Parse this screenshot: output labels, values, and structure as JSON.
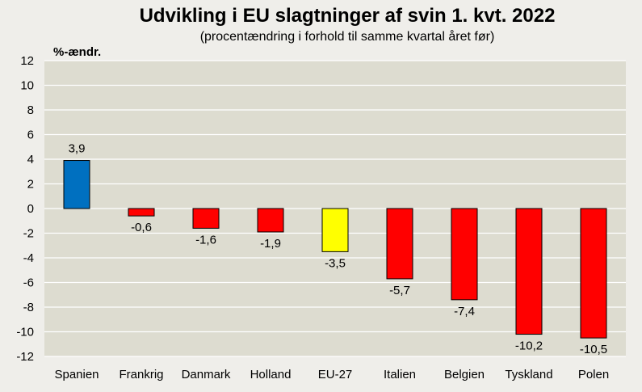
{
  "chart_data": {
    "type": "bar",
    "title": "Udvikling i EU slagtninger af svin 1. kvt. 2022",
    "subtitle": "(procentændring i forhold til samme kvartal året før)",
    "xlabel": "",
    "ylabel": "%-ændr.",
    "ylim": [
      -12,
      12
    ],
    "yticks": [
      12,
      10,
      8,
      6,
      4,
      2,
      0,
      -2,
      -4,
      -6,
      -8,
      -10,
      -12
    ],
    "grid": true,
    "categories": [
      "Spanien",
      "Frankrig",
      "Danmark",
      "Holland",
      "EU-27",
      "Italien",
      "Belgien",
      "Tyskland",
      "Polen"
    ],
    "values": [
      3.9,
      -0.6,
      -1.6,
      -1.9,
      -3.5,
      -5.7,
      -7.4,
      -10.2,
      -10.5
    ],
    "value_labels": [
      "3,9",
      "-0,6",
      "-1,6",
      "-1,9",
      "-3,5",
      "-5,7",
      "-7,4",
      "-10,2",
      "-10,5"
    ],
    "bar_colors": [
      "#0070c0",
      "#ff0000",
      "#ff0000",
      "#ff0000",
      "#ffff00",
      "#ff0000",
      "#ff0000",
      "#ff0000",
      "#ff0000"
    ],
    "plot_background": "#dddcd0",
    "gridline_color": "#ffffff"
  }
}
